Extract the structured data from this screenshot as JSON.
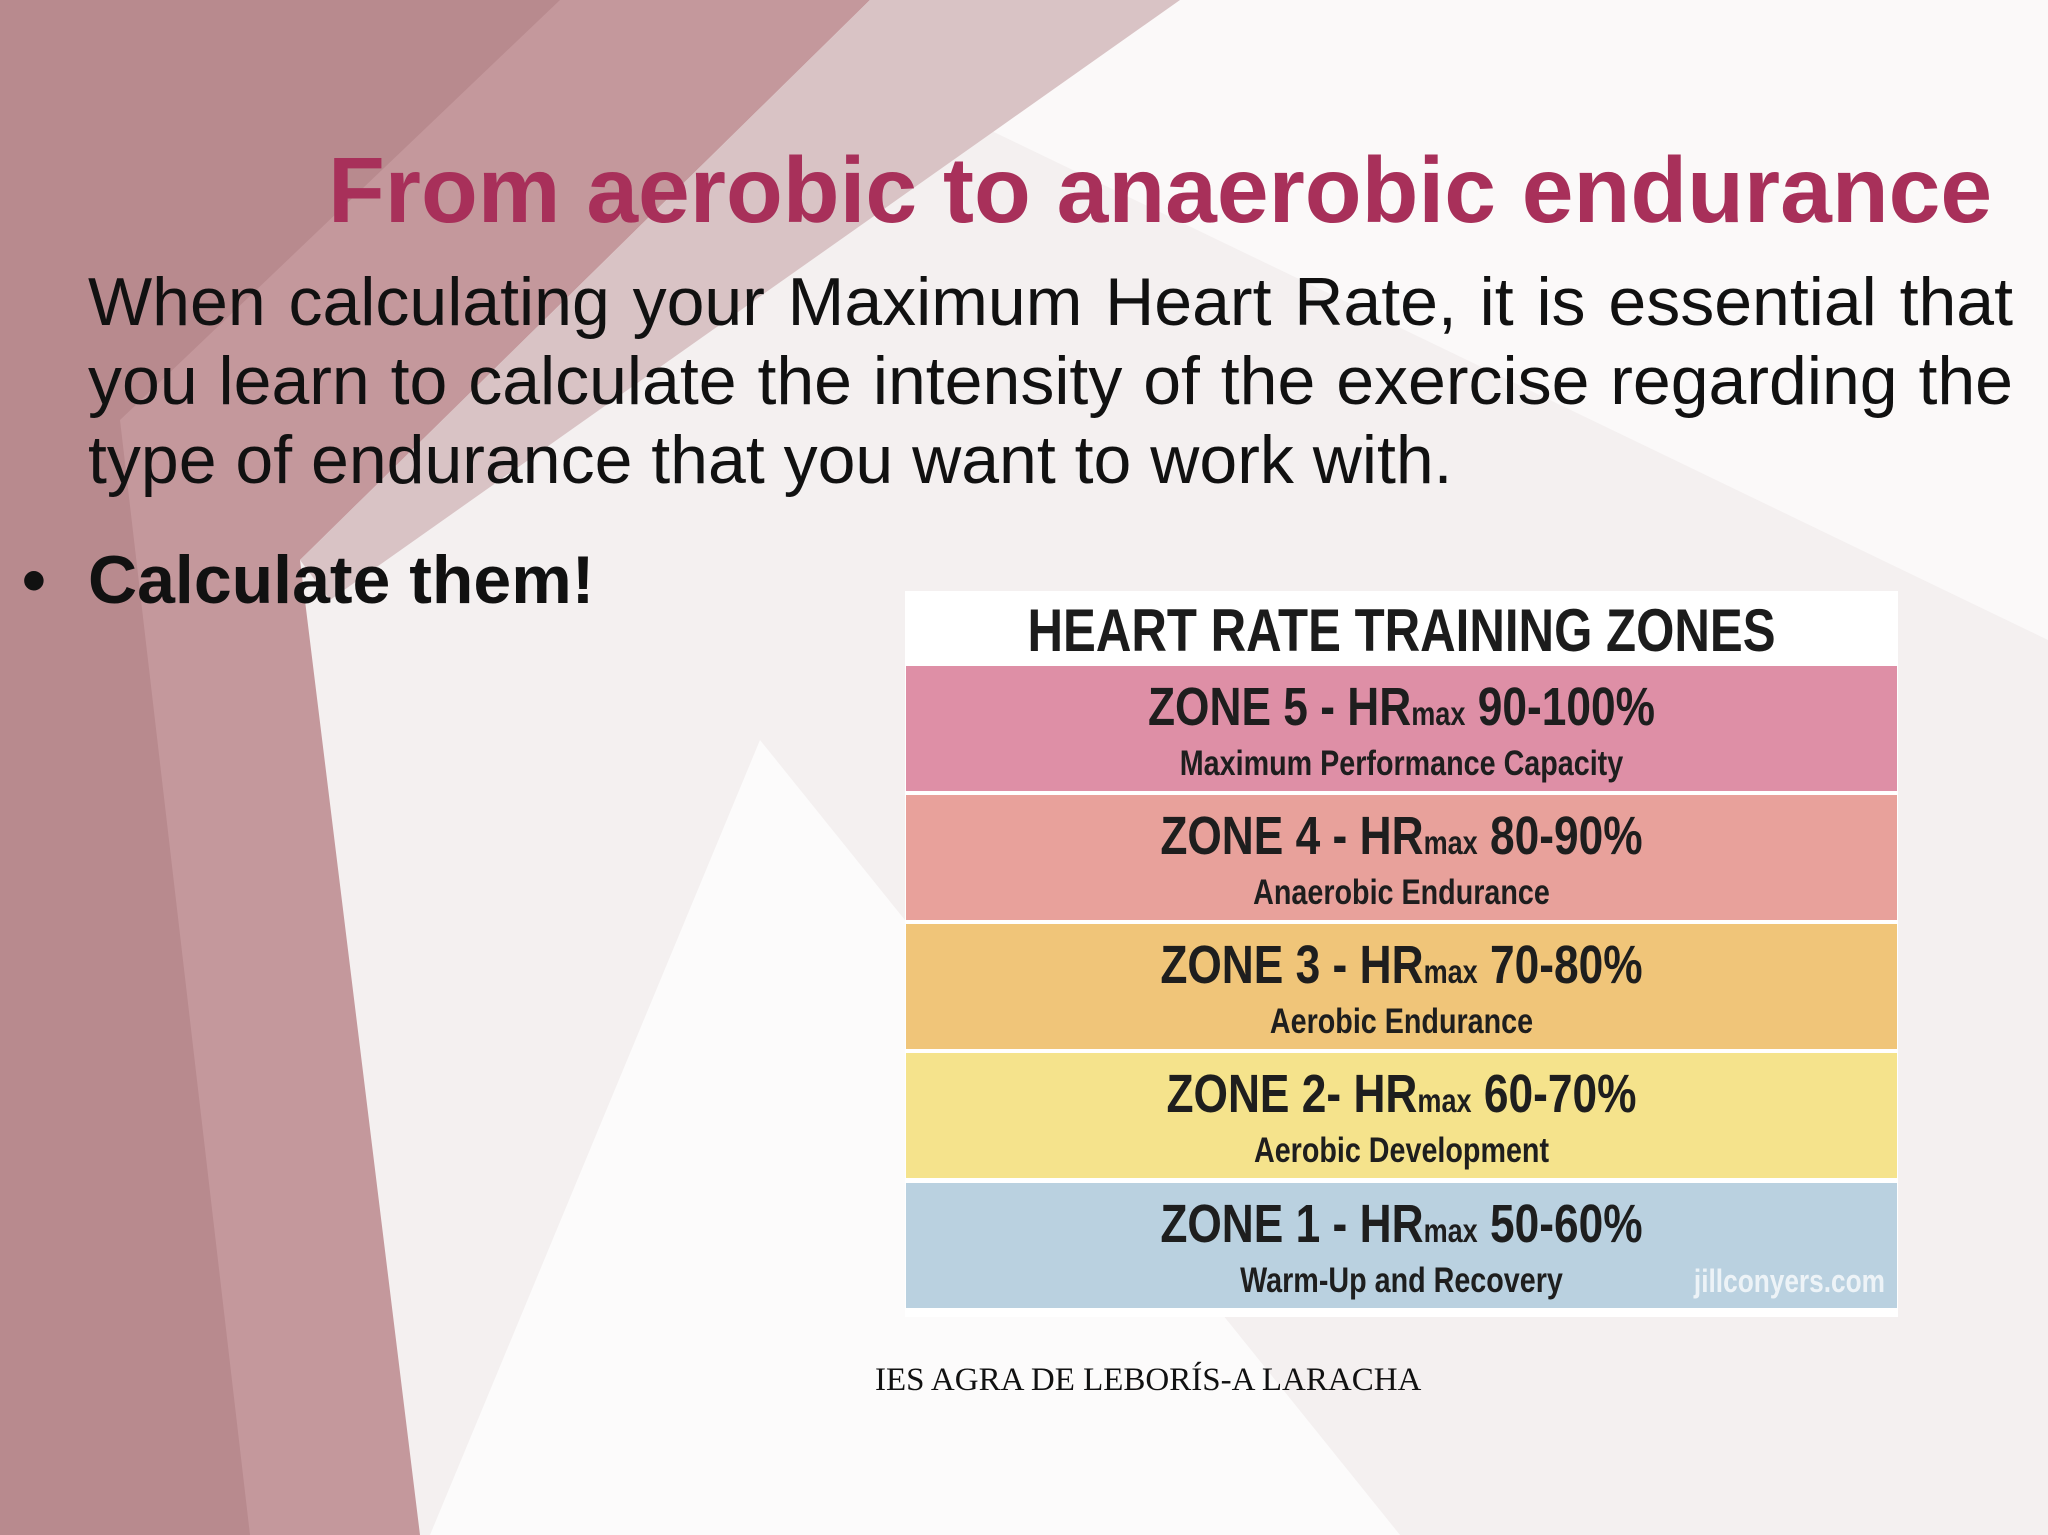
{
  "slide": {
    "title": "From aerobic to anaerobic endurance",
    "intro": "When calculating your Maximum Heart Rate, it is essential that you learn to calculate the intensity of the exercise regarding the type of endurance that you want to work with.",
    "bullet_symbol": "•",
    "bullet": "Calculate them!",
    "footer": "IES AGRA DE LEBORÍS-A LARACHA"
  },
  "zones_chart": {
    "title": "HEART RATE TRAINING ZONES",
    "watermark": "jillconyers.com",
    "zones": [
      {
        "label": "ZONE 5 - ",
        "hr": "HR",
        "max": "max",
        "range": " 90-100%",
        "name": "Maximum Performance Capacity",
        "color": "#de8fa6"
      },
      {
        "label": "ZONE 4 - ",
        "hr": "HR",
        "max": "max",
        "range": " 80-90%",
        "name": "Anaerobic Endurance",
        "color": "#e8a19b"
      },
      {
        "label": "ZONE 3 - ",
        "hr": "HR",
        "max": "max",
        "range": " 70-80%",
        "name": "Aerobic Endurance",
        "color": "#f0c579"
      },
      {
        "label": "ZONE 2- ",
        "hr": "HR",
        "max": "max",
        "range": " 60-70%",
        "name": "Aerobic Development",
        "color": "#f5e38c"
      },
      {
        "label": "ZONE 1 - ",
        "hr": "HR",
        "max": "max",
        "range": " 50-60%",
        "name": "Warm-Up and Recovery",
        "color": "#bad1e0"
      }
    ]
  },
  "colors": {
    "title": "#a8305a",
    "background": "#f3eeee",
    "maroon_band": "#b98c8f"
  }
}
